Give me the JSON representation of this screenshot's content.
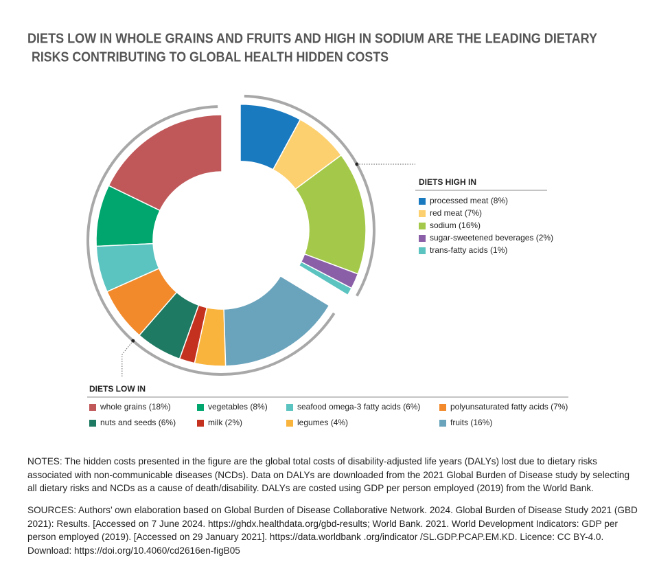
{
  "chart_data": {
    "type": "donut",
    "title": [
      "DIETS LOW IN WHOLE GRAINS AND FRUITS AND HIGH IN SODIUM ARE THE LEADING DIETARY",
      "RISKS CONTRIBUTING TO  GLOBAL HEALTH HIDDEN COSTS"
    ],
    "groups": [
      {
        "label": "DIETS HIGH IN",
        "direction": "clockwise",
        "exploded": true,
        "categories": [
          "processed meat (8%)",
          "red meat (7%)",
          "sodium (16%)",
          "sugar-sweetened beverages (2%)",
          "trans-fatty acids (1%)"
        ],
        "values": [
          8,
          7,
          16,
          2,
          1
        ],
        "colors": [
          "#1a7abf",
          "#fdd06f",
          "#a4c94a",
          "#8a5fa8",
          "#5bc4c0"
        ]
      },
      {
        "label": "DIETS LOW IN",
        "direction": "counterclockwise",
        "exploded": false,
        "categories": [
          "whole grains (18%)",
          "vegetables (8%)",
          "seafood omega-3 fatty acids (6%)",
          "polyunsaturated fatty acids (7%)",
          "nuts and seeds (6%)",
          "milk (2%)",
          "legumes (4%)",
          "fruits (16%)"
        ],
        "values": [
          18,
          8,
          6,
          7,
          6,
          2,
          4,
          16
        ],
        "colors": [
          "#c0585a",
          "#00a66e",
          "#5bc4c0",
          "#f28a2b",
          "#1e7a62",
          "#c4321f",
          "#f9b43e",
          "#6aa3bc"
        ]
      }
    ]
  },
  "notes": "NOTES: The hidden costs presented in the figure are the global total costs of disability-adjusted life years (DALYs) lost due to dietary risks associated with non-communicable diseases (NCDs). Data on DALYs are downloaded from the 2021 Global Burden of Disease study by selecting all dietary risks and NCDs as a cause of death/disability. DALYs are costed using GDP per person employed (2019) from the World Bank.",
  "sources": "SOURCES: Authors’ own elaboration based on Global Burden of Disease Collaborative Network. 2024. Global Burden of Disease Study 2021 (GBD 2021): Results. [Accessed on 7 June 2024. https://ghdx.healthdata.org/gbd-results; World Bank. 2021. World Development Indicators: GDP per person employed (2019). [Accessed on 29 January 2021]. https://data.worldbank .org/indicator /SL.GDP.PCAP.EM.KD. Licence: CC BY-4.0. Download: https://doi.org/10.4060/cd2616en-figB05"
}
